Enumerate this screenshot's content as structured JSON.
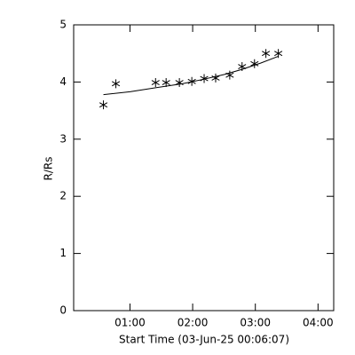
{
  "chart_data": {
    "type": "scatter",
    "x_label": "Start Time (03-Jun-25 00:06:07)",
    "y_label": "R/Rs",
    "xlim": [
      6.1,
      255
    ],
    "ylim": [
      0,
      5
    ],
    "xticks": [
      {
        "value": 60,
        "label": "01:00"
      },
      {
        "value": 120,
        "label": "02:00"
      },
      {
        "value": 180,
        "label": "03:00"
      },
      {
        "value": 240,
        "label": "04:00"
      }
    ],
    "yticks": [
      0,
      1,
      2,
      3,
      4,
      5
    ],
    "series": [
      {
        "marker": "asterisk",
        "color": "#000000",
        "x": [
          34.6,
          46.5,
          84.5,
          94.6,
          107.3,
          119.2,
          131,
          142,
          155.5,
          167.3,
          179.2,
          190.1,
          202
        ],
        "values": [
          3.6,
          3.97,
          3.99,
          3.99,
          3.99,
          4.01,
          4.06,
          4.07,
          4.12,
          4.27,
          4.32,
          4.5,
          4.5
        ]
      },
      {
        "marker": "line",
        "color": "#000000",
        "x": [
          34.6,
          60,
          84.5,
          110,
          131,
          150,
          167,
          185,
          202
        ],
        "values": [
          3.78,
          3.83,
          3.9,
          3.97,
          4.05,
          4.13,
          4.22,
          4.33,
          4.45
        ]
      }
    ]
  }
}
